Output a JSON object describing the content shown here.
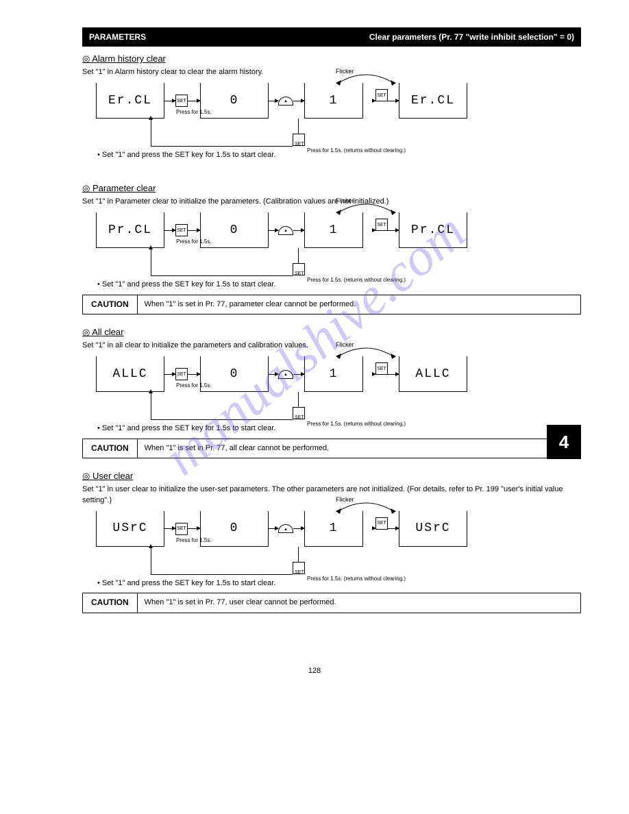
{
  "header": {
    "left": "PARAMETERS",
    "right": "Clear parameters (Pr. 77 \"write inhibit selection\" = 0)"
  },
  "watermark": "manualshive.com",
  "page_number": "128",
  "side_tab": "4",
  "sections": [
    {
      "key": "ercl",
      "title": "◎ Alarm history clear",
      "intro": "Set \"1\" in Alarm history clear to clear the alarm history.",
      "lcd": {
        "a": "Er.CL",
        "b": "0",
        "c": "1",
        "d": "Er.CL"
      },
      "btn1_sub": "Press for 1.5s.",
      "flicker": "Flicker",
      "loop_sub": "Press for 1.5s. (returns without clearing.)",
      "after": "• Set \"1\" and press the SET key for 1.5s to start clear.",
      "caution": null
    },
    {
      "key": "prcl",
      "title": "◎ Parameter clear",
      "intro": "Set \"1\" in Parameter clear to initialize the parameters. (Calibration values are not initialized.)",
      "lcd": {
        "a": "Pr.CL",
        "b": "0",
        "c": "1",
        "d": "Pr.CL"
      },
      "btn1_sub": "Press for 1.5s.",
      "flicker": "Flicker",
      "loop_sub": "Press for 1.5s. (returns without clearing.)",
      "after": "• Set \"1\" and press the SET key for 1.5s to start clear.",
      "caution": {
        "label": "CAUTION",
        "body": "When \"1\" is set in Pr. 77, parameter clear cannot be performed."
      }
    },
    {
      "key": "allc",
      "title": "◎ All clear",
      "intro": "Set \"1\" in all clear to initialize the parameters and calibration values.",
      "lcd": {
        "a": "ALLC",
        "b": "0",
        "c": "1",
        "d": "ALLC"
      },
      "btn1_sub": "Press for 1.5s.",
      "flicker": "Flicker",
      "loop_sub": "Press for 1.5s. (returns without clearing.)",
      "after": "• Set \"1\" and press the SET key for 1.5s to start clear.",
      "caution": {
        "label": "CAUTION",
        "body": "When \"1\" is set in Pr. 77, all clear cannot be performed."
      }
    },
    {
      "key": "usrc",
      "title": "◎ User clear",
      "intro": "Set \"1\" in user clear to initialize the user-set parameters. The other parameters are not initialized. (For details, refer to Pr. 199 \"user's initial value setting\".)",
      "lcd": {
        "a": "USrC",
        "b": "0",
        "c": "1",
        "d": "USrC"
      },
      "btn1_sub": "Press for 1.5s.",
      "flicker": "Flicker",
      "loop_sub": "Press for 1.5s. (returns without clearing.)",
      "after": "• Set \"1\" and press the SET key for 1.5s to start clear.",
      "caution": {
        "label": "CAUTION",
        "body": "When \"1\" is set in Pr. 77, user clear cannot be performed."
      }
    }
  ],
  "colors": {
    "text": "#000000",
    "bg": "#ffffff",
    "bar": "#000000",
    "watermark": "rgba(120,100,230,0.35)"
  }
}
